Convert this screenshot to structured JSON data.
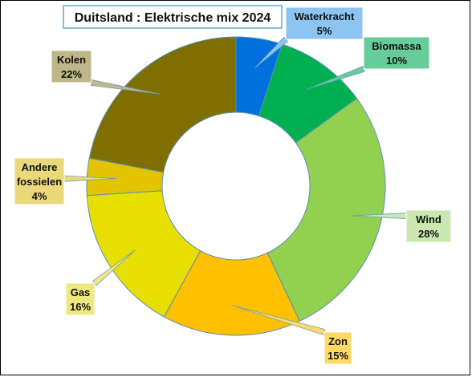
{
  "chart_data": {
    "type": "pie",
    "variant": "donut",
    "title": "Duitsland : Elektrische mix 2024",
    "slices": [
      {
        "name": "Waterkracht",
        "value": 5,
        "label": "5%",
        "color": "#0070DD",
        "box_color": "#8DC4F2"
      },
      {
        "name": "Biomassa",
        "value": 10,
        "label": "10%",
        "color": "#00B050",
        "box_color": "#66CC99"
      },
      {
        "name": "Wind",
        "value": 28,
        "label": "28%",
        "color": "#92D050",
        "box_color": "#C9E7AE"
      },
      {
        "name": "Zon",
        "value": 15,
        "label": "15%",
        "color": "#FFC000",
        "box_color": "#FFD966"
      },
      {
        "name": "Gas",
        "value": 16,
        "label": "16%",
        "color": "#E6DF00",
        "box_color": "#EFE880"
      },
      {
        "name": "Andere fossielen",
        "label_lines": [
          "Andere",
          "fossielen"
        ],
        "value": 4,
        "label": "4%",
        "color": "#E2C400",
        "box_color": "#EAD97A"
      },
      {
        "name": "Kolen",
        "value": 22,
        "label": "22%",
        "color": "#7F6F00",
        "box_color": "#BFB78A"
      }
    ],
    "start_angle_deg": 0,
    "direction": "clockwise",
    "legend": "none",
    "data_labels": "callouts"
  }
}
